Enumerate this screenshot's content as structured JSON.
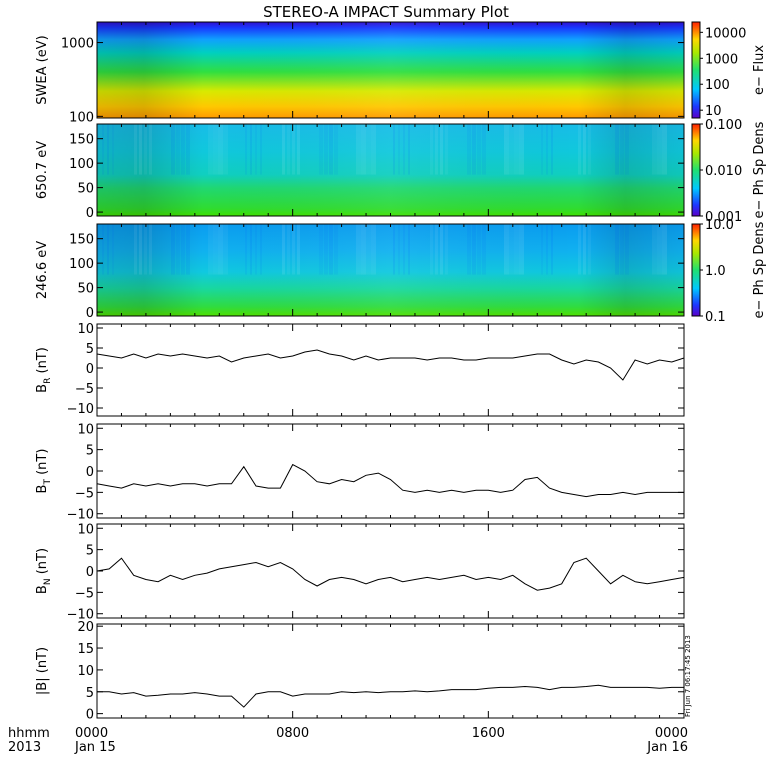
{
  "title": "STEREO-A IMPACT Summary Plot",
  "stamp": "Fri Jun  7 06:17:45 2013",
  "chart_data": [
    {
      "type": "heatmap",
      "ylabel": "SWEA (eV)",
      "yscale": "log",
      "ylim": [
        95,
        1900
      ],
      "yticks": [
        {
          "v": 100,
          "label": "100"
        },
        {
          "v": 1000,
          "label": "1000"
        }
      ],
      "colorbar": {
        "label": "e− Flux",
        "scale": "log",
        "range": [
          5,
          25000
        ],
        "ticks": [
          {
            "v": 10,
            "label": "10"
          },
          {
            "v": 100,
            "label": "100"
          },
          {
            "v": 1000,
            "label": "1000"
          },
          {
            "v": 10000,
            "label": "10000"
          }
        ]
      },
      "description_levels": {
        "energy_eV": [
          100,
          200,
          400,
          800,
          1500
        ],
        "flux": [
          15000,
          3000,
          400,
          60,
          8
        ]
      }
    },
    {
      "type": "heatmap",
      "ylabel": "650.7 eV",
      "ylim": [
        -8,
        180
      ],
      "yticks": [
        {
          "v": 0,
          "label": "0"
        },
        {
          "v": 50,
          "label": "50"
        },
        {
          "v": 100,
          "label": "100"
        },
        {
          "v": 150,
          "label": "150"
        }
      ],
      "colorbar": {
        "label": "e− Ph Sp Dens",
        "scale": "log",
        "range": [
          0.001,
          0.1
        ],
        "ticks": [
          {
            "v": 0.001,
            "label": "0.001"
          },
          {
            "v": 0.01,
            "label": "0.010"
          },
          {
            "v": 0.1,
            "label": "0.100"
          }
        ]
      }
    },
    {
      "type": "heatmap",
      "ylabel": "246.6 eV",
      "ylim": [
        -8,
        180
      ],
      "yticks": [
        {
          "v": 0,
          "label": "0"
        },
        {
          "v": 50,
          "label": "50"
        },
        {
          "v": 100,
          "label": "100"
        },
        {
          "v": 150,
          "label": "150"
        }
      ],
      "colorbar": {
        "label": "e− Ph Sp Dens",
        "scale": "log",
        "range": [
          0.1,
          10
        ],
        "ticks": [
          {
            "v": 0.1,
            "label": "0.1"
          },
          {
            "v": 1,
            "label": "1.0"
          },
          {
            "v": 10,
            "label": "10.0"
          }
        ]
      }
    },
    {
      "type": "line",
      "ylabel_main": "B",
      "ylabel_sub": "R",
      "ylabel_unit": " (nT)",
      "ylim": [
        -12,
        11
      ],
      "yticks": [
        {
          "v": -10,
          "label": "−10"
        },
        {
          "v": -5,
          "label": "−5"
        },
        {
          "v": 0,
          "label": "0"
        },
        {
          "v": 5,
          "label": "5"
        },
        {
          "v": 10,
          "label": "10"
        }
      ],
      "x": [
        0,
        0.5,
        1,
        1.5,
        2,
        2.5,
        3,
        3.5,
        4,
        4.5,
        5,
        5.5,
        6,
        6.5,
        7,
        7.5,
        8,
        8.5,
        9,
        9.5,
        10,
        10.5,
        11,
        11.5,
        12,
        12.5,
        13,
        13.5,
        14,
        14.5,
        15,
        15.5,
        16,
        16.5,
        17,
        17.5,
        18,
        18.5,
        19,
        19.5,
        20,
        20.5,
        21,
        21.5,
        22,
        22.5,
        23,
        23.5,
        24
      ],
      "y": [
        3.5,
        3,
        2.5,
        3.5,
        2.5,
        3.5,
        3,
        3.5,
        3,
        2.5,
        3,
        1.5,
        2.5,
        3,
        3.5,
        2.5,
        3,
        4,
        4.5,
        3.5,
        3,
        2,
        3,
        2,
        2.5,
        2.5,
        2.5,
        2,
        2.5,
        2.5,
        2,
        2,
        2.5,
        2.5,
        2.5,
        3,
        3.5,
        3.5,
        2,
        1,
        2,
        1.5,
        0,
        -3,
        2,
        1,
        2,
        1.5,
        2.5
      ]
    },
    {
      "type": "line",
      "ylabel_main": "B",
      "ylabel_sub": "T",
      "ylabel_unit": " (nT)",
      "ylim": [
        -11,
        11
      ],
      "yticks": [
        {
          "v": -10,
          "label": "−10"
        },
        {
          "v": -5,
          "label": "−5"
        },
        {
          "v": 0,
          "label": "0"
        },
        {
          "v": 5,
          "label": "5"
        },
        {
          "v": 10,
          "label": "10"
        }
      ],
      "x": [
        0,
        0.5,
        1,
        1.5,
        2,
        2.5,
        3,
        3.5,
        4,
        4.5,
        5,
        5.5,
        6,
        6.5,
        7,
        7.5,
        8,
        8.5,
        9,
        9.5,
        10,
        10.5,
        11,
        11.5,
        12,
        12.5,
        13,
        13.5,
        14,
        14.5,
        15,
        15.5,
        16,
        16.5,
        17,
        17.5,
        18,
        18.5,
        19,
        19.5,
        20,
        20.5,
        21,
        21.5,
        22,
        22.5,
        23,
        23.5,
        24
      ],
      "y": [
        -3,
        -3.5,
        -4,
        -3,
        -3.5,
        -3,
        -3.5,
        -3,
        -3,
        -3.5,
        -3,
        -3,
        1,
        -3.5,
        -4,
        -4,
        1.5,
        0,
        -2.5,
        -3,
        -2,
        -2.5,
        -1,
        -0.5,
        -2,
        -4.5,
        -5,
        -4.5,
        -5,
        -4.5,
        -5,
        -4.5,
        -4.5,
        -5,
        -4.5,
        -2,
        -1.5,
        -4,
        -5,
        -5.5,
        -6,
        -5.5,
        -5.5,
        -5,
        -5.5,
        -5,
        -5,
        -5,
        -5
      ]
    },
    {
      "type": "line",
      "ylabel_main": "B",
      "ylabel_sub": "N",
      "ylabel_unit": " (nT)",
      "ylim": [
        -11,
        11
      ],
      "yticks": [
        {
          "v": -10,
          "label": "−10"
        },
        {
          "v": -5,
          "label": "−5"
        },
        {
          "v": 0,
          "label": "0"
        },
        {
          "v": 5,
          "label": "5"
        },
        {
          "v": 10,
          "label": "10"
        }
      ],
      "x": [
        0,
        0.5,
        1,
        1.5,
        2,
        2.5,
        3,
        3.5,
        4,
        4.5,
        5,
        5.5,
        6,
        6.5,
        7,
        7.5,
        8,
        8.5,
        9,
        9.5,
        10,
        10.5,
        11,
        11.5,
        12,
        12.5,
        13,
        13.5,
        14,
        14.5,
        15,
        15.5,
        16,
        16.5,
        17,
        17.5,
        18,
        18.5,
        19,
        19.5,
        20,
        20.5,
        21,
        21.5,
        22,
        22.5,
        23,
        23.5,
        24
      ],
      "y": [
        0,
        0.5,
        3,
        -1,
        -2,
        -2.5,
        -1,
        -2,
        -1,
        -0.5,
        0.5,
        1,
        1.5,
        2,
        1,
        2,
        0.5,
        -2,
        -3.5,
        -2,
        -1.5,
        -2,
        -3,
        -2,
        -1.5,
        -2.5,
        -2,
        -1.5,
        -2,
        -1.5,
        -1,
        -2,
        -1.5,
        -2,
        -1,
        -3,
        -4.5,
        -4,
        -3,
        2,
        3,
        0,
        -3,
        -1,
        -2.5,
        -3,
        -2.5,
        -2,
        -1.5
      ]
    },
    {
      "type": "line",
      "ylabel_main": "|B|",
      "ylabel_sub": "",
      "ylabel_unit": " (nT)",
      "ylim": [
        -1,
        20.5
      ],
      "yticks": [
        {
          "v": 0,
          "label": "0"
        },
        {
          "v": 5,
          "label": "5"
        },
        {
          "v": 10,
          "label": "10"
        },
        {
          "v": 15,
          "label": "15"
        },
        {
          "v": 20,
          "label": "20"
        }
      ],
      "x": [
        0,
        0.5,
        1,
        1.5,
        2,
        2.5,
        3,
        3.5,
        4,
        4.5,
        5,
        5.5,
        6,
        6.5,
        7,
        7.5,
        8,
        8.5,
        9,
        9.5,
        10,
        10.5,
        11,
        11.5,
        12,
        12.5,
        13,
        13.5,
        14,
        14.5,
        15,
        15.5,
        16,
        16.5,
        17,
        17.5,
        18,
        18.5,
        19,
        19.5,
        20,
        20.5,
        21,
        21.5,
        22,
        22.5,
        23,
        23.5,
        24
      ],
      "y": [
        5,
        5,
        4.5,
        4.8,
        4,
        4.2,
        4.5,
        4.5,
        4.8,
        4.5,
        4,
        4,
        1.5,
        4.5,
        5,
        5,
        4,
        4.5,
        4.5,
        4.5,
        5,
        4.8,
        5,
        4.8,
        5,
        5,
        5.2,
        5,
        5.2,
        5.5,
        5.5,
        5.5,
        5.8,
        6,
        6,
        6.2,
        6,
        5.5,
        6,
        6,
        6.2,
        6.5,
        6,
        6,
        6,
        6,
        5.8,
        6,
        6
      ]
    }
  ],
  "xaxis": {
    "hhmm_label": "hhmm",
    "year_label": "2013",
    "range": [
      0,
      24
    ],
    "ticks": [
      {
        "v": 0,
        "label": "0000",
        "date": "Jan 15"
      },
      {
        "v": 8,
        "label": "0800",
        "date": ""
      },
      {
        "v": 16,
        "label": "1600",
        "date": ""
      },
      {
        "v": 24,
        "label": "0000",
        "date": "Jan 16"
      }
    ]
  }
}
